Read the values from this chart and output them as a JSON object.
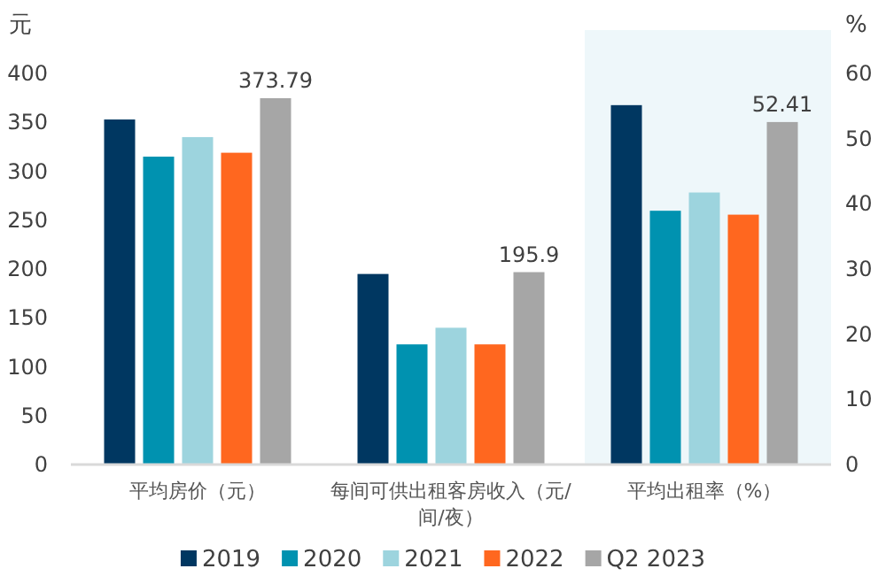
{
  "chart_data": {
    "type": "bar",
    "ylabel": "元",
    "y2label": "%",
    "categories": [
      "平均房价（元）",
      "每间可供出租客房收入（元/间/夜）",
      "平均出租率（%）"
    ],
    "ylim": [
      0,
      400
    ],
    "yticks": [
      0,
      50,
      100,
      150,
      200,
      250,
      300,
      350,
      400
    ],
    "y2lim": [
      0,
      60
    ],
    "y2ticks": [
      0,
      10,
      20,
      30,
      40,
      50,
      60
    ],
    "grid": false,
    "legend": "bottom",
    "bands": [
      {
        "axis": "x",
        "from": "平均出租率（%）",
        "to": "平均出租率（%）",
        "color": "#eef7fa"
      }
    ],
    "series": [
      {
        "name": "2019",
        "color": "#003761",
        "values": [
          352,
          194,
          null
        ]
      },
      {
        "name": "2020",
        "color": "#0092b0",
        "values": [
          314,
          122,
          null
        ]
      },
      {
        "name": "2021",
        "color": "#9dd4de",
        "values": [
          334,
          139,
          null
        ]
      },
      {
        "name": "2022",
        "color": "#ff671f",
        "values": [
          318,
          122,
          null
        ]
      },
      {
        "name": "Q2 2023",
        "color": "#a6a6a6",
        "values": [
          373.79,
          195.9,
          null
        ],
        "value_labels": [
          "373.79",
          "195.9",
          null
        ]
      },
      {
        "color": "#003761",
        "axis": "y2",
        "values": [
          null,
          null,
          55.0
        ]
      },
      {
        "color": "#0092b0",
        "axis": "y2",
        "values": [
          null,
          null,
          38.8
        ]
      },
      {
        "color": "#9dd4de",
        "axis": "y2",
        "values": [
          null,
          null,
          41.6
        ]
      },
      {
        "color": "#ff671f",
        "axis": "y2",
        "values": [
          null,
          null,
          38.2
        ]
      },
      {
        "color": "#a6a6a6",
        "axis": "y2",
        "values": [
          null,
          null,
          52.41
        ],
        "value_labels": [
          null,
          null,
          "52.41"
        ]
      }
    ]
  }
}
